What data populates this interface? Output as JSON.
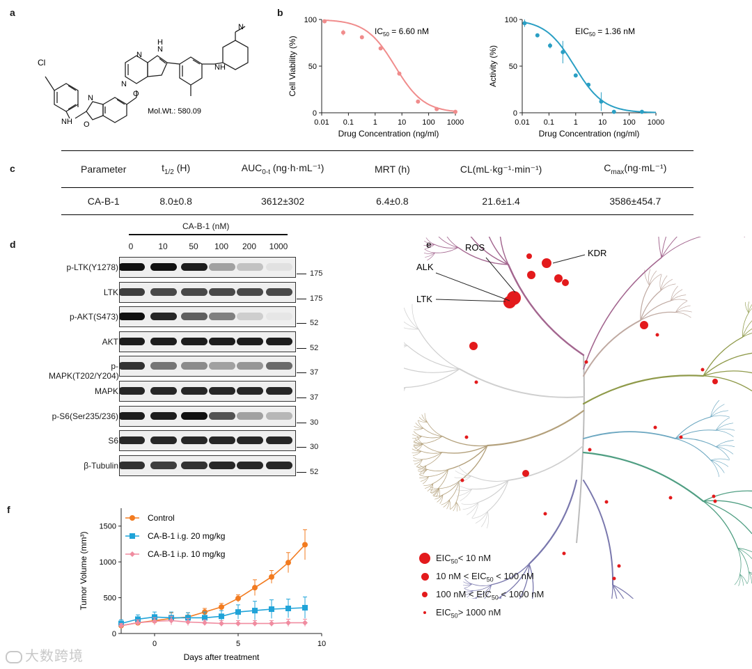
{
  "panels": {
    "a": "a",
    "b": "b",
    "c": "c",
    "d": "d",
    "e": "e",
    "f": "f"
  },
  "panel_a": {
    "atoms": {
      "cl": "Cl",
      "nh1": "N",
      "h1": "H",
      "o_ring": "O",
      "n_ring": "N",
      "o_link": "O",
      "n_pyr1": "N",
      "n_pyr2": "N",
      "h_pyr": "H",
      "n_pyr3": "N",
      "nh2": "N",
      "h2": "H",
      "n_pip": "N"
    },
    "mol_wt": "Mol.Wt.: 580.09"
  },
  "chart_data": [
    {
      "id": "cell-viability",
      "type": "scatter",
      "title": "",
      "xlabel": "Drug Concentration (ng/ml)",
      "ylabel": "Cell Viability (%)",
      "xscale": "log",
      "xlim": [
        0.01,
        1000
      ],
      "ylim": [
        0,
        100
      ],
      "xticks": [
        "0.01",
        "0.1",
        "1",
        "10",
        "100",
        "1000"
      ],
      "yticks": [
        "0",
        "50",
        "100"
      ],
      "annotation": {
        "prefix": "IC",
        "sub": "50",
        "suffix": " = 6.60 nM"
      },
      "color": "#f08c8c",
      "points": [
        {
          "x": 0.0128,
          "y": 98,
          "err": 1.5
        },
        {
          "x": 0.064,
          "y": 86,
          "err": 3
        },
        {
          "x": 0.32,
          "y": 81,
          "err": 1.5
        },
        {
          "x": 1.6,
          "y": 69,
          "err": 1.5
        },
        {
          "x": 8,
          "y": 42,
          "err": 1.5
        },
        {
          "x": 40,
          "y": 12,
          "err": 1
        },
        {
          "x": 200,
          "y": 4,
          "err": 1
        },
        {
          "x": 1000,
          "y": 1,
          "err": 1
        }
      ],
      "fit": {
        "top": 100,
        "bottom": 0,
        "ic50": 5.5,
        "hill": 0.8
      }
    },
    {
      "id": "kinase-activity",
      "type": "scatter",
      "title": "",
      "xlabel": "Drug Concentration (ng/ml)",
      "ylabel": "Activity (%)",
      "xscale": "log",
      "xlim": [
        0.01,
        1000
      ],
      "ylim": [
        0,
        100
      ],
      "xticks": [
        "0.01",
        "0.1",
        "1",
        "10",
        "100",
        "1000"
      ],
      "yticks": [
        "0",
        "50",
        "100"
      ],
      "annotation": {
        "prefix": "EIC",
        "sub": "50",
        "suffix": " = 1.36 nM"
      },
      "color": "#2a9fc4",
      "points": [
        {
          "x": 0.0123,
          "y": 96,
          "err": 4
        },
        {
          "x": 0.037,
          "y": 83,
          "err": 2
        },
        {
          "x": 0.11,
          "y": 72,
          "err": 3
        },
        {
          "x": 0.33,
          "y": 65,
          "err": 12
        },
        {
          "x": 1.0,
          "y": 40,
          "err": 2
        },
        {
          "x": 3.0,
          "y": 30,
          "err": 2
        },
        {
          "x": 9.0,
          "y": 12,
          "err": 10
        },
        {
          "x": 27,
          "y": 1,
          "err": 1
        },
        {
          "x": 300,
          "y": 1,
          "err": 1
        }
      ],
      "fit": {
        "top": 100,
        "bottom": 0,
        "ic50": 0.9,
        "hill": 0.8
      }
    },
    {
      "id": "tumor-volume",
      "type": "line",
      "title": "",
      "xlabel": "Days after treatment",
      "ylabel": "Tumor Volume (mm³)",
      "xlim": [
        -2,
        10
      ],
      "ylim": [
        0,
        1750
      ],
      "xticks": [
        "0",
        "5",
        "10"
      ],
      "yticks": [
        "0",
        "500",
        "1000",
        "1500"
      ],
      "x": [
        -2,
        -1,
        0,
        1,
        2,
        3,
        4,
        5,
        6,
        7,
        8,
        9
      ],
      "series": [
        {
          "name": "Control",
          "color": "#f27b20",
          "marker": "circle",
          "values": [
            110,
            150,
            180,
            210,
            230,
            300,
            370,
            490,
            640,
            790,
            990,
            1240
          ],
          "err": [
            40,
            40,
            60,
            80,
            60,
            50,
            50,
            50,
            110,
            90,
            140,
            210
          ]
        },
        {
          "name": "CA-B-1 i.g. 20 mg/kg",
          "color": "#1fa3d8",
          "marker": "square",
          "values": [
            140,
            200,
            230,
            220,
            220,
            220,
            240,
            300,
            320,
            340,
            350,
            360
          ],
          "err": [
            50,
            60,
            70,
            80,
            70,
            80,
            80,
            100,
            130,
            130,
            130,
            150
          ]
        },
        {
          "name": "CA-B-1 i.p. 10 mg/kg",
          "color": "#f08ca0",
          "marker": "diamond",
          "values": [
            110,
            150,
            170,
            180,
            160,
            150,
            140,
            140,
            140,
            140,
            150,
            150
          ],
          "err": [
            30,
            40,
            50,
            60,
            50,
            40,
            40,
            40,
            40,
            40,
            50,
            50
          ]
        }
      ]
    }
  ],
  "table_c": {
    "headers": [
      {
        "main": "Parameter",
        "sub": "",
        "tail": ""
      },
      {
        "main": "t",
        "sub": "1/2",
        "tail": " (H)"
      },
      {
        "main": "AUC",
        "sub": "0-t",
        "tail": " (ng·h·mL⁻¹)"
      },
      {
        "main": "MRT (h)",
        "sub": "",
        "tail": ""
      },
      {
        "main": "CL(mL·kg⁻¹·min⁻¹)",
        "sub": "",
        "tail": ""
      },
      {
        "main": "C",
        "sub": "max",
        "tail": "(ng·mL⁻¹)"
      }
    ],
    "row": [
      "CA-B-1",
      "8.0±0.8",
      "3612±302",
      "6.4±0.8",
      "21.6±1.4",
      "3586±454.7"
    ]
  },
  "panel_d": {
    "treatment": "CA-B-1 (nM)",
    "doses": [
      "0",
      "10",
      "50",
      "100",
      "200",
      "1000"
    ],
    "blots": [
      {
        "label": "p-LTK(Y1278)",
        "mw": "175",
        "intensity": [
          1.0,
          1.0,
          0.95,
          0.35,
          0.2,
          0.06
        ]
      },
      {
        "label": "LTK",
        "mw": "175",
        "intensity": [
          0.8,
          0.75,
          0.75,
          0.75,
          0.75,
          0.75
        ]
      },
      {
        "label": "p-AKT(S473)",
        "mw": "52",
        "intensity": [
          1.0,
          0.9,
          0.65,
          0.5,
          0.15,
          0.0
        ]
      },
      {
        "label": "AKT",
        "mw": "52",
        "intensity": [
          0.95,
          0.95,
          0.95,
          0.95,
          0.95,
          0.95
        ]
      },
      {
        "label": "p-MAPK(T202/Y204)",
        "mw": "37",
        "intensity": [
          0.85,
          0.55,
          0.45,
          0.35,
          0.4,
          0.6
        ]
      },
      {
        "label": "MAPK",
        "mw": "37",
        "intensity": [
          0.9,
          0.9,
          0.9,
          0.9,
          0.9,
          0.9
        ]
      },
      {
        "label": "p-S6(Ser235/236)",
        "mw": "30",
        "intensity": [
          0.95,
          0.95,
          1.0,
          0.7,
          0.35,
          0.25
        ]
      },
      {
        "label": "S6",
        "mw": "30",
        "intensity": [
          0.9,
          0.9,
          0.9,
          0.9,
          0.9,
          0.9
        ]
      },
      {
        "label": "β-Tubulin",
        "mw": "52",
        "intensity": [
          0.85,
          0.8,
          0.85,
          0.9,
          0.9,
          0.9
        ]
      }
    ]
  },
  "panel_e": {
    "labels": {
      "ros": "ROS",
      "kdr": "KDR",
      "alk": "ALK",
      "ltk": "LTK"
    },
    "legend": [
      {
        "prefix": "",
        "mid": "EIC",
        "sub": "50",
        "suffix": "< 10 nM"
      },
      {
        "prefix": "10 nM < ",
        "mid": "EIC",
        "sub": "50",
        "suffix": " < 100 nM"
      },
      {
        "prefix": "100 nM < ",
        "mid": "EIC",
        "sub": "50",
        "suffix": " < 1000 nM"
      },
      {
        "prefix": "",
        "mid": "EIC",
        "sub": "50",
        "suffix": "> 1000 nM"
      }
    ],
    "branch_colors": [
      "#a3668f",
      "#b3a07b",
      "#8f9a4a",
      "#6aa6c0",
      "#4f9e82",
      "#7a78ad",
      "#c9c9c9"
    ],
    "hit_color": "#e31a1c"
  },
  "watermark": "大数跨境"
}
